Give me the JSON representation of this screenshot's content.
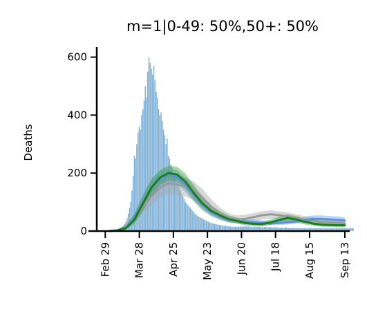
{
  "chart_data": {
    "type": "bar+line",
    "title": "m=1|0-49: 50%,50+: 50%",
    "ylabel": "Deaths",
    "xlabel": "",
    "x_range": [
      "2020-02-22",
      "2020-09-17"
    ],
    "ylim": [
      0,
      630
    ],
    "yticks": [
      0,
      200,
      400,
      600
    ],
    "ytick_labels": [
      "0",
      "200",
      "400",
      "600"
    ],
    "xticks": [
      "2020-02-29",
      "2020-03-28",
      "2020-04-25",
      "2020-05-23",
      "2020-06-20",
      "2020-07-18",
      "2020-08-15",
      "2020-09-13"
    ],
    "xtick_labels": [
      "Feb 29",
      "Mar 28",
      "Apr 25",
      "May 23",
      "Jun 20",
      "Jul 18",
      "Aug 15",
      "Sep 13"
    ],
    "grid": false,
    "legend": "none",
    "colors": {
      "bars": "#7fb0d6",
      "main_line": "#1a7f1a",
      "main_band": "#3f9f3f",
      "blue_line": "#5b8fe0",
      "blue_band": "#6b9fe8",
      "gray_line": "#9a9a9a",
      "gray_band": "#a8a8a8"
    },
    "bars": {
      "start": "2020-02-29",
      "values": [
        0,
        0,
        1,
        1,
        0,
        2,
        1,
        2,
        1,
        3,
        4,
        5,
        7,
        9,
        12,
        18,
        25,
        32,
        45,
        60,
        80,
        100,
        140,
        190,
        260,
        250,
        300,
        340,
        360,
        350,
        400,
        420,
        450,
        500,
        460,
        550,
        600,
        580,
        560,
        540,
        570,
        520,
        480,
        460,
        420,
        400,
        410,
        380,
        350,
        330,
        300,
        320,
        260,
        250,
        230,
        220,
        200,
        190,
        180,
        170,
        160,
        150,
        140,
        130,
        120,
        110,
        100,
        95,
        90,
        85,
        80,
        75,
        70,
        65,
        60,
        55,
        52,
        50,
        47,
        45,
        43,
        40,
        38,
        36,
        34,
        32,
        30,
        28,
        27,
        26,
        25,
        24,
        23,
        22,
        21,
        20,
        20,
        19,
        18,
        18,
        17,
        17,
        16,
        16,
        15,
        15,
        15,
        15,
        15,
        15,
        15,
        15,
        15,
        16,
        16,
        16,
        16,
        16,
        16,
        15,
        15,
        15,
        15,
        15,
        15,
        15,
        15,
        15,
        14,
        14,
        14,
        14,
        14,
        14,
        14,
        14,
        13,
        13,
        13,
        13,
        13,
        13,
        13,
        12,
        12,
        12,
        12,
        12,
        12,
        12,
        11,
        11,
        11,
        11,
        11,
        11,
        11,
        10,
        10,
        10,
        10,
        10,
        10,
        10,
        10,
        10,
        10,
        10,
        10,
        10,
        10,
        10,
        10,
        10,
        10,
        10,
        10,
        10,
        10,
        10,
        10,
        10,
        10,
        10,
        10,
        10,
        10,
        10,
        10,
        10,
        10,
        10,
        10,
        10,
        10,
        10,
        10,
        10,
        10,
        10,
        10,
        10,
        10,
        10,
        10
      ]
    },
    "series": [
      {
        "color_key": "gray",
        "x": [
          "2020-03-03",
          "2020-03-10",
          "2020-03-17",
          "2020-03-24",
          "2020-03-31",
          "2020-04-07",
          "2020-04-14",
          "2020-04-21",
          "2020-04-28",
          "2020-05-05",
          "2020-05-12",
          "2020-05-19",
          "2020-05-26",
          "2020-06-02",
          "2020-06-09",
          "2020-06-16",
          "2020-06-23",
          "2020-06-30",
          "2020-07-07",
          "2020-07-14",
          "2020-07-21",
          "2020-07-28",
          "2020-08-04",
          "2020-08-11",
          "2020-08-18",
          "2020-08-25",
          "2020-09-01",
          "2020-09-08",
          "2020-09-13"
        ],
        "y": [
          0,
          3,
          15,
          45,
          85,
          120,
          150,
          165,
          160,
          155,
          140,
          115,
          85,
          60,
          45,
          40,
          42,
          48,
          55,
          58,
          55,
          50,
          45,
          40,
          36,
          32,
          30,
          28,
          27
        ],
        "band_lower": [
          0,
          1,
          8,
          30,
          60,
          90,
          115,
          130,
          125,
          120,
          105,
          85,
          62,
          42,
          30,
          27,
          30,
          35,
          40,
          42,
          40,
          36,
          32,
          28,
          25,
          22,
          20,
          18,
          18
        ],
        "band_upper": [
          1,
          6,
          25,
          60,
          110,
          150,
          180,
          195,
          190,
          185,
          170,
          145,
          110,
          82,
          62,
          54,
          56,
          62,
          68,
          72,
          68,
          64,
          58,
          52,
          47,
          42,
          40,
          38,
          36
        ]
      },
      {
        "color_key": "blue",
        "x": [
          "2020-03-03",
          "2020-03-10",
          "2020-03-17",
          "2020-03-24",
          "2020-03-31",
          "2020-04-07",
          "2020-04-14",
          "2020-04-21",
          "2020-04-28",
          "2020-05-05",
          "2020-05-12",
          "2020-05-19",
          "2020-05-26",
          "2020-06-02",
          "2020-06-09",
          "2020-06-16",
          "2020-06-23",
          "2020-06-30",
          "2020-07-07",
          "2020-07-14",
          "2020-07-21",
          "2020-07-28",
          "2020-08-04",
          "2020-08-11",
          "2020-08-18",
          "2020-08-25",
          "2020-09-01",
          "2020-09-08",
          "2020-09-13"
        ],
        "y": [
          0,
          2,
          12,
          45,
          100,
          150,
          180,
          195,
          185,
          160,
          125,
          90,
          65,
          50,
          40,
          35,
          32,
          30,
          28,
          27,
          28,
          30,
          33,
          38,
          42,
          42,
          40,
          38,
          36
        ],
        "band_lower": [
          0,
          1,
          6,
          30,
          75,
          120,
          155,
          170,
          160,
          135,
          100,
          70,
          50,
          38,
          30,
          26,
          23,
          22,
          20,
          20,
          21,
          23,
          25,
          29,
          32,
          32,
          30,
          28,
          26
        ],
        "band_upper": [
          1,
          5,
          20,
          62,
          125,
          180,
          205,
          215,
          210,
          185,
          150,
          112,
          82,
          64,
          52,
          46,
          42,
          39,
          37,
          35,
          36,
          39,
          43,
          49,
          54,
          54,
          52,
          50,
          47
        ]
      },
      {
        "color_key": "main",
        "x": [
          "2020-03-03",
          "2020-03-10",
          "2020-03-17",
          "2020-03-24",
          "2020-03-31",
          "2020-04-07",
          "2020-04-14",
          "2020-04-21",
          "2020-04-28",
          "2020-05-05",
          "2020-05-12",
          "2020-05-19",
          "2020-05-26",
          "2020-06-02",
          "2020-06-09",
          "2020-06-16",
          "2020-06-23",
          "2020-06-30",
          "2020-07-07",
          "2020-07-14",
          "2020-07-21",
          "2020-07-28",
          "2020-08-04",
          "2020-08-11",
          "2020-08-18",
          "2020-08-25",
          "2020-09-01",
          "2020-09-08",
          "2020-09-13"
        ],
        "y": [
          0,
          2,
          10,
          40,
          95,
          150,
          185,
          200,
          195,
          170,
          130,
          95,
          70,
          55,
          42,
          35,
          28,
          25,
          24,
          30,
          38,
          45,
          40,
          32,
          26,
          22,
          21,
          20,
          20
        ],
        "band_lower": [
          0,
          1,
          5,
          25,
          70,
          120,
          160,
          175,
          170,
          145,
          105,
          75,
          55,
          42,
          32,
          26,
          20,
          17,
          16,
          21,
          28,
          34,
          30,
          23,
          18,
          15,
          14,
          13,
          13
        ],
        "band_upper": [
          1,
          4,
          18,
          58,
          122,
          180,
          210,
          225,
          222,
          198,
          158,
          120,
          88,
          70,
          55,
          46,
          38,
          34,
          33,
          40,
          50,
          58,
          52,
          42,
          35,
          30,
          29,
          28,
          28
        ]
      }
    ]
  }
}
